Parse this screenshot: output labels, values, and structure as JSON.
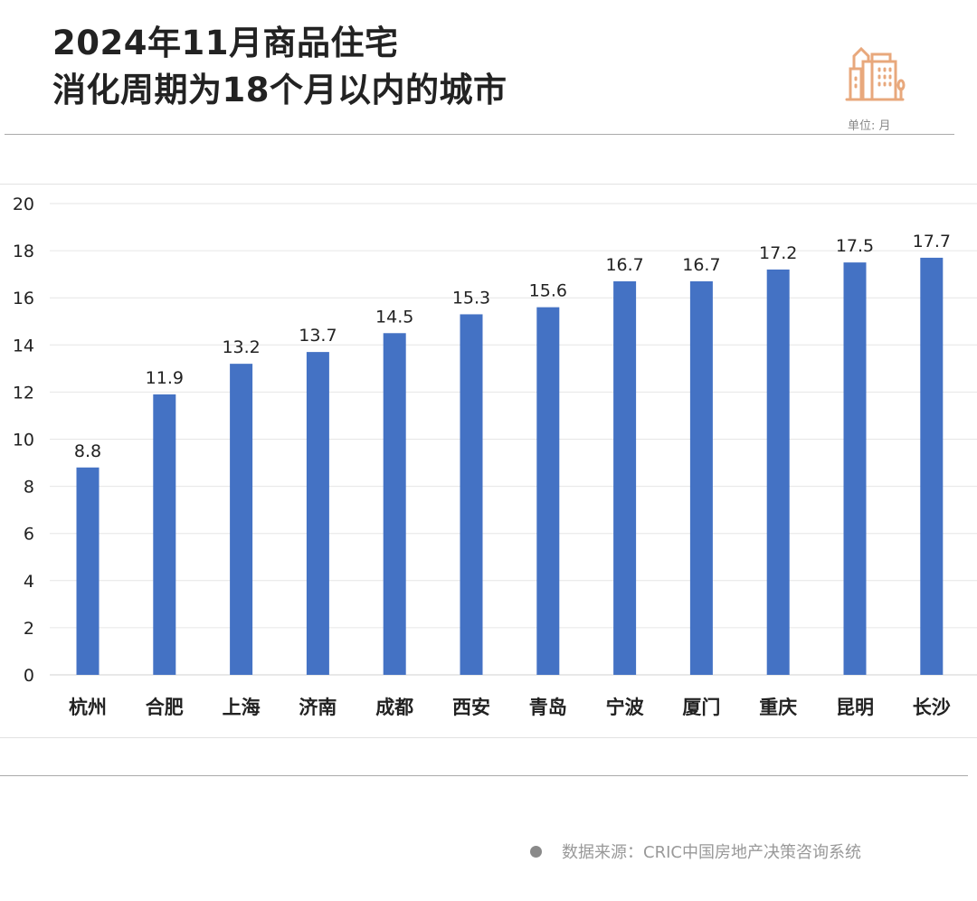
{
  "header": {
    "title_line1": "2024年11月商品住宅",
    "title_line2": "消化周期为18个月以内的城市",
    "unit": "单位: 月",
    "icon": "buildings-icon",
    "icon_color": "#E8A87C"
  },
  "footer": {
    "source": "数据来源：CRIC中国房地产决策咨询系统"
  },
  "chart_data": {
    "type": "bar",
    "categories": [
      "杭州",
      "合肥",
      "上海",
      "济南",
      "成都",
      "西安",
      "青岛",
      "宁波",
      "厦门",
      "重庆",
      "昆明",
      "长沙"
    ],
    "values": [
      8.8,
      11.9,
      13.2,
      13.7,
      14.5,
      15.3,
      15.6,
      16.7,
      16.7,
      17.2,
      17.5,
      17.7
    ],
    "data_labels": [
      "8.8",
      "11.9",
      "13.2",
      "13.7",
      "14.5",
      "15.3",
      "15.6",
      "16.7",
      "16.7",
      "17.2",
      "17.5",
      "17.7"
    ],
    "ylim": [
      0,
      20
    ],
    "yticks": [
      "0",
      "2",
      "4",
      "6",
      "8",
      "10",
      "12",
      "14",
      "16",
      "18",
      "20"
    ],
    "grid": true,
    "bar_color": "#4472C4"
  }
}
